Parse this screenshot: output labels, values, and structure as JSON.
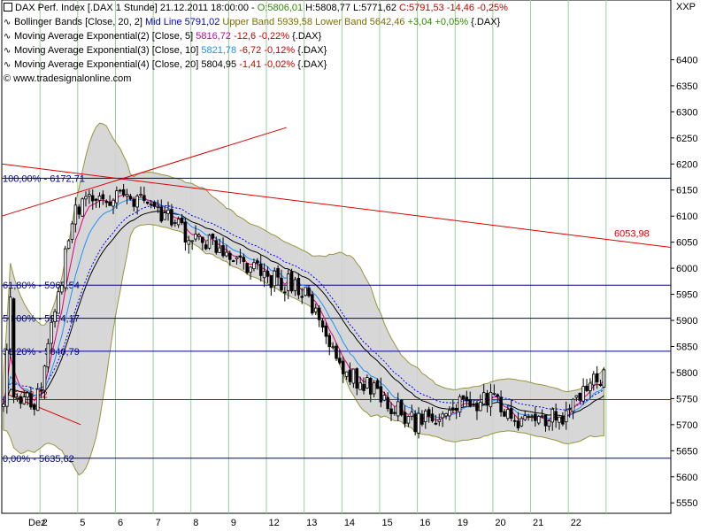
{
  "header": {
    "line1": {
      "instrument": "DAX Perf. Index [.DAX 1 Stunde] 21.12.2011 18:00:00 - ",
      "open": "O:5806,01",
      "high": " H:5808,77",
      "low": " L:5771,62",
      "close": " C:5791,53 -14,46 -0,25%"
    },
    "line2": {
      "name": "Bollinger Bands [Close, 20, 2]",
      "mid": " Mid Line 5791,02",
      "upper": " Upper Band 5939,58",
      "lower": " Lower Band 5642,46",
      "change": " +3,04 +0,05%",
      "suffix": " {.DAX}"
    },
    "line3": {
      "name": "Moving Average Exponential(2) [Close, 5]",
      "value": " 5816,72",
      "change": " -12,6 -0,22%",
      "suffix": " {.DAX}"
    },
    "line4": {
      "name": "Moving Average Exponential(3) [Close, 10]",
      "value": " 5821,78",
      "change": " -6,72 -0,12%",
      "suffix": " {.DAX}"
    },
    "line5": {
      "name": "Moving Average Exponential(4) [Close, 20]",
      "value": " 5804,95",
      "change": " -1,41 -0,02%",
      "suffix": " {.DAX}"
    },
    "copyright": "© www.tradesignalonline.com"
  },
  "corner_label": "XXP",
  "colors": {
    "candle_up": "#ffffff",
    "candle_down": "#000000",
    "bollinger_fill": "#d3d3d3",
    "bollinger_edge": "#8b8b2a",
    "ema5": "#e0007a",
    "ema10": "#1e90ff",
    "ema20": "#000000",
    "ema20_dotted": "#0000ff",
    "fib_line": "#00008b",
    "trend_line": "#dd0000",
    "grid_vertical": "#9acd9a"
  },
  "chart_data": {
    "type": "candlestick",
    "title": "DAX Perf. Index [.DAX 1 Stunde]",
    "ylim": [
      5530,
      6450
    ],
    "y_ticks": [
      5550,
      5600,
      5650,
      5700,
      5750,
      5800,
      5850,
      5900,
      5950,
      6000,
      6050,
      6100,
      6150,
      6200,
      6250,
      6300,
      6350,
      6400
    ],
    "y_tick_labels": [
      "5550",
      "5600",
      "5650",
      "5700",
      "5750",
      "5800",
      "5850",
      "5900",
      "5950",
      "6000",
      "6050",
      "6100",
      "6150",
      "6200",
      "6250",
      "6300",
      "6350",
      "6400"
    ],
    "x_tick_labels": [
      "Dez",
      "2",
      "5",
      "6",
      "7",
      "8",
      "9",
      "12",
      "13",
      "14",
      "15",
      "16",
      "19",
      "20",
      "21",
      "22"
    ],
    "x_day_bounds": [
      0,
      11,
      22,
      33,
      44,
      55,
      66,
      77,
      88,
      99,
      110,
      121,
      132,
      143,
      154,
      165,
      176
    ],
    "bars_per_day": 11,
    "day_closes": [
      5750,
      6120,
      6135,
      6120,
      6060,
      6030,
      5985,
      5960,
      5810,
      5760,
      5700,
      5735,
      5745,
      5700,
      5720,
      5800
    ],
    "fib_levels": [
      {
        "label": "100,00% - 6172,71",
        "value": 6172.71
      },
      {
        "label": "61,80% - 5967,54",
        "value": 5967.54
      },
      {
        "label": "50,00% - 5904,17",
        "value": 5904.17
      },
      {
        "label": "38,20% - 5840,79",
        "value": 5840.79
      },
      {
        "label": "0,00% - 5635,62",
        "value": 5635.62
      }
    ],
    "support_level": {
      "label": "5748,22",
      "value": 5748.22
    },
    "trend_label": {
      "label": "6053,98",
      "value": 6053.98
    },
    "trend_lines": [
      {
        "from": [
          0,
          6100
        ],
        "to": [
          83,
          6270
        ]
      },
      {
        "from": [
          0,
          6200
        ],
        "to": [
          195,
          6040
        ]
      },
      {
        "from": [
          1,
          5760
        ],
        "to": [
          23,
          5700
        ]
      }
    ]
  }
}
